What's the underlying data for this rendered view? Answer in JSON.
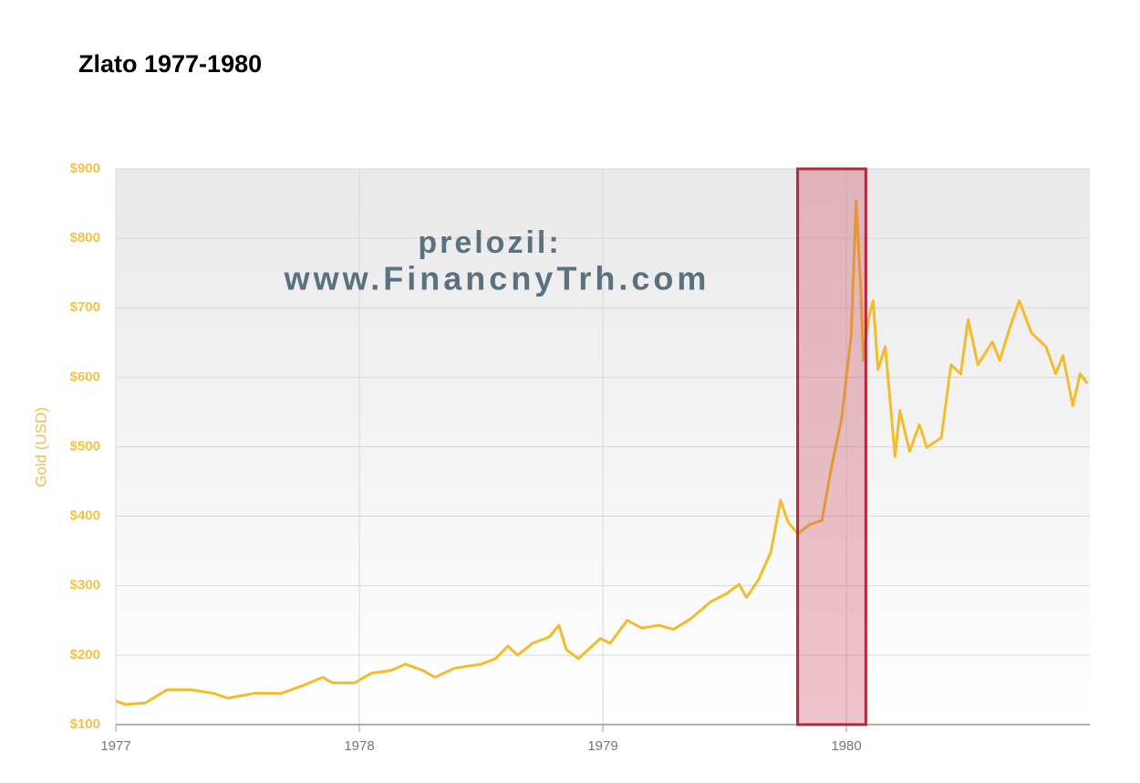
{
  "chart_data": {
    "type": "line",
    "title": "Zlato 1977-1980",
    "y_label": "Gold (USD)",
    "annotations": [
      "prelozil:",
      "www.FinancnyTrh.com"
    ],
    "highlight_range": [
      1979.8,
      1980.08
    ],
    "color": "#f2bd2c",
    "grid": true,
    "xlim": [
      1977,
      1981
    ],
    "xticks": [
      1977,
      1978,
      1979,
      1980
    ],
    "ylim": [
      100,
      900
    ],
    "yticks": [
      {
        "value": 100,
        "label": "$100"
      },
      {
        "value": 200,
        "label": "$200"
      },
      {
        "value": 300,
        "label": "$300"
      },
      {
        "value": 400,
        "label": "$400"
      },
      {
        "value": 500,
        "label": "$500"
      },
      {
        "value": 600,
        "label": "$600"
      },
      {
        "value": 700,
        "label": "$700"
      },
      {
        "value": 800,
        "label": "$800"
      },
      {
        "value": 900,
        "label": "$900"
      }
    ],
    "x": [
      1977.0,
      1977.04,
      1977.12,
      1977.21,
      1977.31,
      1977.4,
      1977.46,
      1977.57,
      1977.68,
      1977.76,
      1977.85,
      1977.89,
      1977.98,
      1978.05,
      1978.13,
      1978.19,
      1978.26,
      1978.31,
      1978.39,
      1978.5,
      1978.56,
      1978.61,
      1978.65,
      1978.71,
      1978.78,
      1978.82,
      1978.85,
      1978.9,
      1978.99,
      1979.03,
      1979.1,
      1979.16,
      1979.23,
      1979.29,
      1979.36,
      1979.44,
      1979.51,
      1979.56,
      1979.59,
      1979.64,
      1979.69,
      1979.73,
      1979.76,
      1979.8,
      1979.85,
      1979.9,
      1979.94,
      1979.98,
      1980.01,
      1980.02,
      1980.04,
      1980.06,
      1980.07,
      1980.09,
      1980.11,
      1980.13,
      1980.16,
      1980.2,
      1980.22,
      1980.26,
      1980.3,
      1980.33,
      1980.39,
      1980.43,
      1980.47,
      1980.5,
      1980.54,
      1980.6,
      1980.63,
      1980.67,
      1980.71,
      1980.76,
      1980.82,
      1980.86,
      1980.89,
      1980.93,
      1980.96,
      1980.99
    ],
    "values": [
      134,
      129,
      131,
      150,
      150,
      145,
      138,
      145,
      145,
      155,
      168,
      160,
      160,
      174,
      178,
      187,
      178,
      168,
      181,
      187,
      195,
      213,
      200,
      217,
      226,
      243,
      208,
      195,
      224,
      217,
      250,
      239,
      243,
      237,
      252,
      276,
      289,
      302,
      283,
      309,
      348,
      423,
      392,
      375,
      388,
      394,
      473,
      539,
      631,
      660,
      854,
      723,
      624,
      683,
      710,
      611,
      644,
      486,
      552,
      493,
      532,
      499,
      513,
      618,
      605,
      683,
      618,
      651,
      624,
      670,
      710,
      664,
      644,
      605,
      631,
      559,
      605,
      591
    ]
  }
}
